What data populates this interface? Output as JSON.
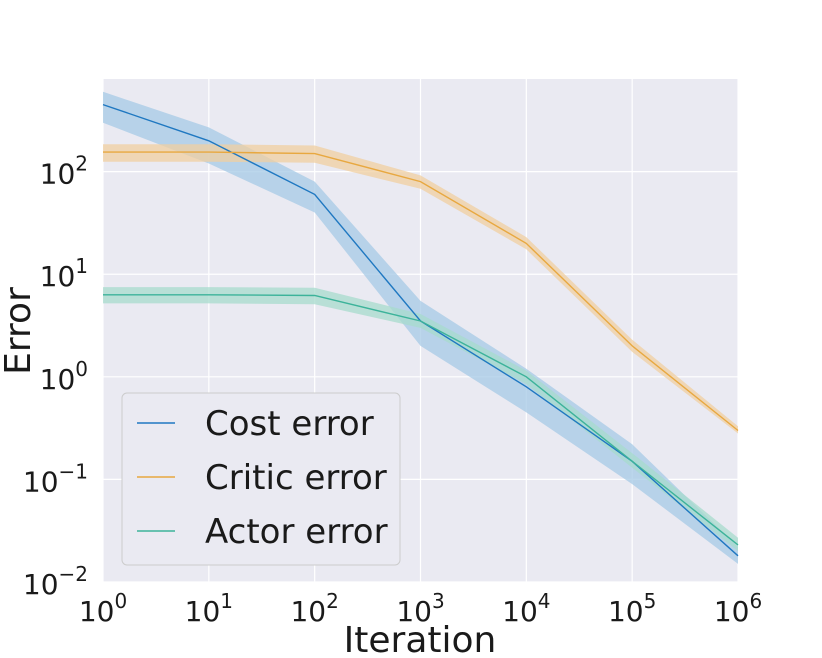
{
  "chart_data": {
    "type": "line",
    "title": "",
    "xlabel": "Iteration",
    "ylabel": "Error",
    "xscale": "log",
    "yscale": "log",
    "xlim": [
      1,
      1000000
    ],
    "ylim": [
      0.01,
      800
    ],
    "grid": true,
    "background_color": "#eaeaf2",
    "legend_position": "lower-left",
    "x_ticks": [
      {
        "value": 1,
        "base": "10",
        "exp": "0"
      },
      {
        "value": 10,
        "base": "10",
        "exp": "1"
      },
      {
        "value": 100,
        "base": "10",
        "exp": "2"
      },
      {
        "value": 1000,
        "base": "10",
        "exp": "3"
      },
      {
        "value": 10000,
        "base": "10",
        "exp": "4"
      },
      {
        "value": 100000,
        "base": "10",
        "exp": "5"
      },
      {
        "value": 1000000,
        "base": "10",
        "exp": "6"
      }
    ],
    "y_ticks": [
      {
        "value": 0.01,
        "base": "10",
        "exp": "−2"
      },
      {
        "value": 0.1,
        "base": "10",
        "exp": "−1"
      },
      {
        "value": 1,
        "base": "10",
        "exp": "0"
      },
      {
        "value": 10,
        "base": "10",
        "exp": "1"
      },
      {
        "value": 100,
        "base": "10",
        "exp": "2"
      }
    ],
    "series": [
      {
        "name": "Cost error",
        "color": "#1f78c1",
        "band_color": "#a6c9e6",
        "x": [
          1,
          10,
          100,
          1000,
          10000,
          100000,
          1000000
        ],
        "y": [
          450,
          200,
          60,
          3.5,
          0.8,
          0.15,
          0.018
        ],
        "lower": [
          300,
          120,
          40,
          2.0,
          0.45,
          0.09,
          0.015
        ],
        "upper": [
          600,
          270,
          80,
          5.5,
          1.2,
          0.22,
          0.022
        ]
      },
      {
        "name": "Critic error",
        "color": "#e8a840",
        "band_color": "#f0cfa0",
        "x": [
          1,
          10,
          100,
          1000,
          10000,
          100000,
          1000000
        ],
        "y": [
          155,
          155,
          150,
          80,
          20,
          2.0,
          0.3
        ],
        "lower": [
          125,
          125,
          122,
          68,
          17.5,
          1.75,
          0.28
        ],
        "upper": [
          185,
          185,
          180,
          92,
          23,
          2.3,
          0.33
        ]
      },
      {
        "name": "Actor error",
        "color": "#3cb39a",
        "band_color": "#a7dbcc",
        "x": [
          1,
          10,
          100,
          1000,
          10000,
          100000,
          1000000
        ],
        "y": [
          6.3,
          6.3,
          6.2,
          3.5,
          1.0,
          0.15,
          0.023
        ],
        "lower": [
          5.2,
          5.2,
          5.1,
          3.0,
          0.85,
          0.13,
          0.02
        ],
        "upper": [
          7.5,
          7.5,
          7.4,
          4.1,
          1.15,
          0.18,
          0.027
        ]
      }
    ]
  }
}
